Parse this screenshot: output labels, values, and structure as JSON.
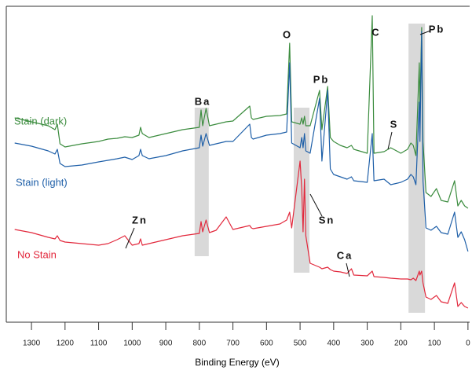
{
  "chart_data": {
    "type": "line",
    "x_label": "Binding Energy (eV)",
    "x": [
      1350,
      1300,
      1250,
      1230,
      1223,
      1215,
      1200,
      1150,
      1100,
      1072,
      1045,
      1022,
      1000,
      980,
      975,
      970,
      950,
      900,
      850,
      800,
      795,
      790,
      780,
      770,
      750,
      720,
      700,
      650,
      645,
      640,
      600,
      560,
      540,
      531,
      525,
      500,
      495,
      491,
      487,
      483,
      470,
      442,
      435,
      418,
      410,
      400,
      380,
      360,
      347,
      340,
      300,
      285,
      280,
      250,
      230,
      200,
      180,
      170,
      163,
      155,
      145,
      143,
      138,
      134,
      125,
      110,
      94,
      80,
      60,
      40,
      30,
      20,
      10,
      0
    ],
    "series": [
      {
        "name": "Stain (dark)",
        "color": "#3b8c3e",
        "values": [
          260,
          255,
          250,
          245,
          252,
          227,
          223,
          227,
          230,
          233,
          234,
          236,
          235,
          238,
          248,
          240,
          235,
          240,
          245,
          248,
          270,
          250,
          272,
          250,
          252,
          255,
          256,
          275,
          260,
          258,
          262,
          263,
          265,
          355,
          255,
          252,
          260,
          252,
          262,
          250,
          250,
          295,
          245,
          300,
          235,
          230,
          225,
          222,
          225,
          220,
          215,
          390,
          215,
          217,
          222,
          215,
          220,
          228,
          225,
          212,
          330,
          270,
          375,
          230,
          165,
          160,
          170,
          155,
          153,
          180,
          148,
          155,
          148,
          145
        ]
      },
      {
        "name": "Stain (light)",
        "color": "#1e5fa8",
        "values": [
          228,
          224,
          218,
          214,
          220,
          202,
          198,
          200,
          204,
          206,
          208,
          210,
          207,
          212,
          220,
          212,
          208,
          212,
          218,
          222,
          238,
          224,
          240,
          225,
          227,
          230,
          230,
          252,
          235,
          233,
          238,
          240,
          242,
          330,
          228,
          222,
          235,
          222,
          240,
          218,
          215,
          285,
          205,
          295,
          195,
          188,
          185,
          182,
          185,
          180,
          178,
          240,
          180,
          182,
          175,
          178,
          182,
          188,
          185,
          175,
          280,
          230,
          370,
          180,
          120,
          117,
          122,
          114,
          112,
          140,
          108,
          115,
          105,
          90
        ]
      },
      {
        "name": "No Stain",
        "color": "#e2283c",
        "values": [
          118,
          114,
          108,
          106,
          110,
          104,
          102,
          100,
          98,
          100,
          105,
          110,
          98,
          100,
          106,
          98,
          100,
          105,
          110,
          113,
          128,
          115,
          130,
          114,
          117,
          134,
          118,
          123,
          120,
          119,
          122,
          125,
          130,
          140,
          120,
          205,
          170,
          115,
          182,
          110,
          75,
          70,
          68,
          70,
          67,
          65,
          64,
          62,
          68,
          60,
          59,
          65,
          58,
          57,
          56,
          55,
          55,
          54,
          56,
          53,
          65,
          60,
          65,
          50,
          32,
          29,
          34,
          26,
          24,
          50,
          20,
          25,
          20,
          18
        ]
      }
    ],
    "xlim": [
      1375,
      -5
    ],
    "xticks": [
      1300,
      1200,
      1100,
      1000,
      900,
      800,
      700,
      600,
      500,
      400,
      300,
      200,
      100,
      0
    ],
    "ylim": [
      0,
      400
    ],
    "annotations": [
      "O",
      "C",
      "Pb",
      "Ba",
      "Pb",
      "Sn",
      "S",
      "Zn",
      "Ca"
    ],
    "highlights": [
      {
        "xrange": [
          814,
          772
        ],
        "yrange": [
          84,
          273
        ]
      },
      {
        "xrange": [
          519,
          472
        ],
        "yrange": [
          63,
          273
        ]
      },
      {
        "xrange": [
          177,
          128
        ],
        "yrange": [
          12,
          380
        ]
      }
    ],
    "highlight_color": "#d9d9d9"
  }
}
